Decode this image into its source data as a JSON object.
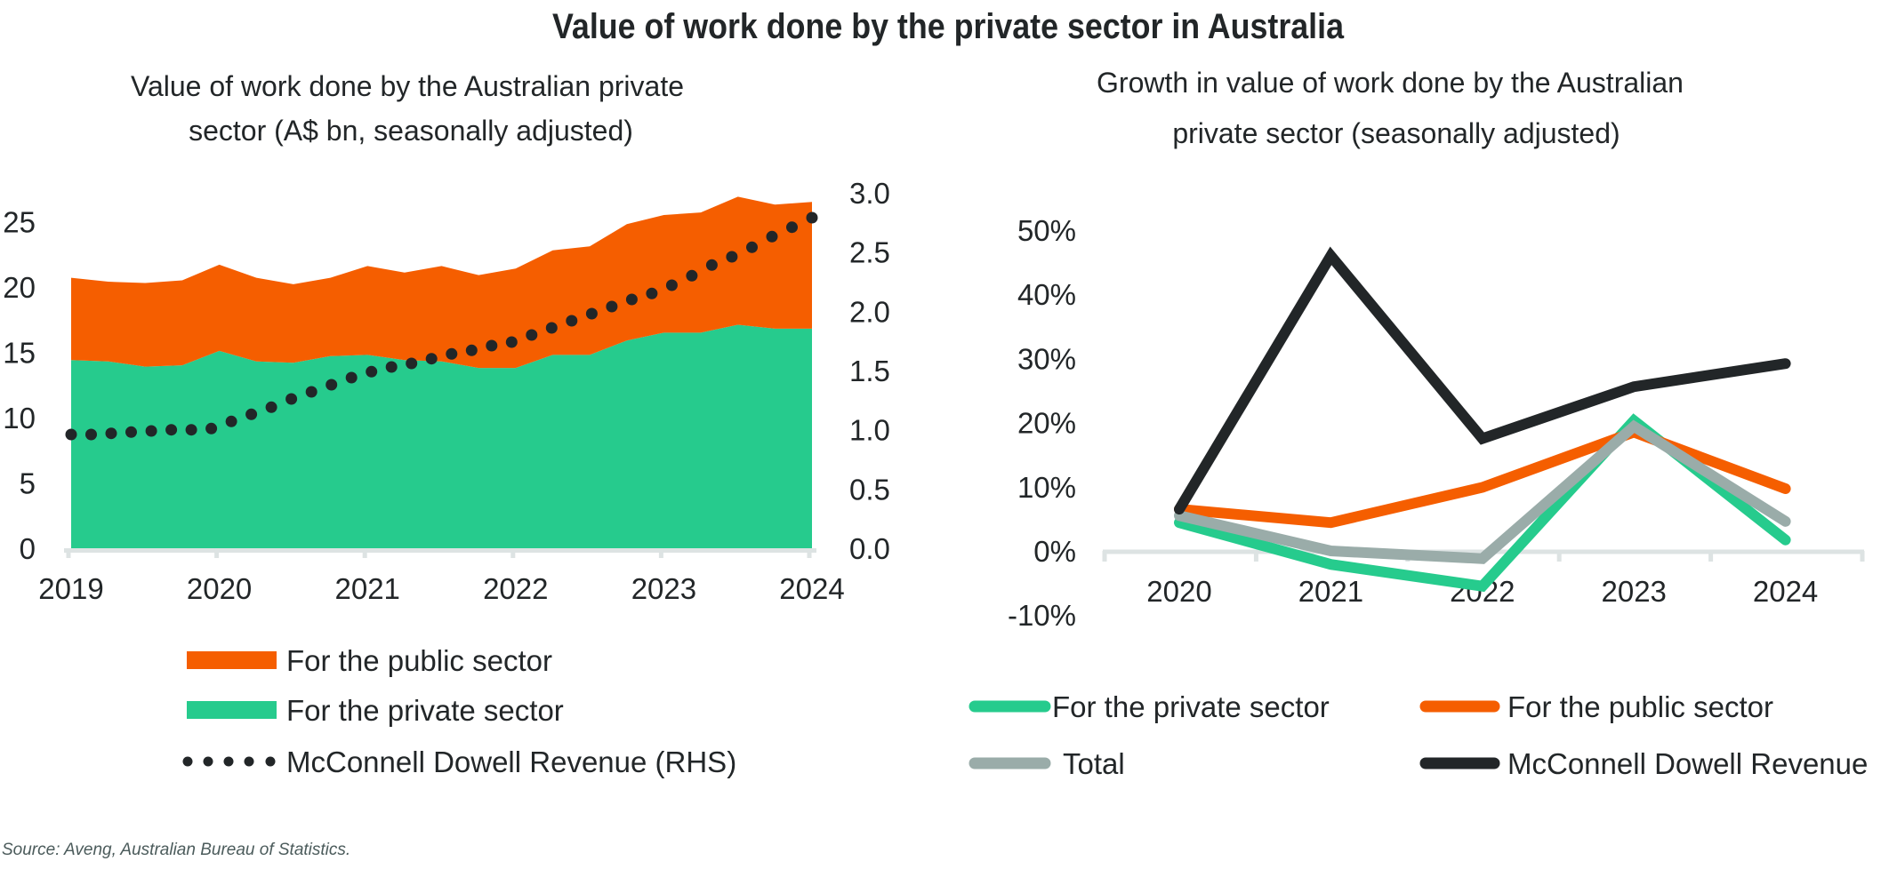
{
  "page_title": "Value of work done by the private sector in Australia",
  "source": "Source: Aveng, Australian Bureau of Statistics.",
  "colors": {
    "title": "#35de9c",
    "axis": "#dde3e3",
    "text": "#222628"
  },
  "chart_data": [
    {
      "type": "area",
      "stacked": true,
      "title_lines": [
        "Value of work done by the Australian private",
        "sector (A$ bn, seasonally adjusted)"
      ],
      "xlim": [
        2019,
        2024
      ],
      "ylim": [
        0,
        27.2
      ],
      "y2lim": [
        0,
        3.0
      ],
      "x_tick_values": [
        2019,
        2020,
        2021,
        2022,
        2023,
        2024
      ],
      "x_ticks": [
        "2019",
        "2020",
        "2021",
        "2022",
        "2023",
        "2024"
      ],
      "y_tick_values": [
        0,
        5,
        10,
        15,
        20,
        25
      ],
      "y_ticks": [
        "0",
        "5",
        "10",
        "15",
        "20",
        "25"
      ],
      "y2_tick_values": [
        0,
        0.5,
        1.0,
        1.5,
        2.0,
        2.5,
        3.0
      ],
      "y2_ticks": [
        "0.0",
        "0.5",
        "1.0",
        "1.5",
        "2.0",
        "2.5",
        "3.0"
      ],
      "grid": false,
      "legend_position": "bottom",
      "x": [
        2019,
        2019.25,
        2019.5,
        2019.75,
        2020,
        2020.25,
        2020.5,
        2020.75,
        2021,
        2021.25,
        2021.5,
        2021.75,
        2022,
        2022.25,
        2022.5,
        2022.75,
        2023,
        2023.25,
        2023.5,
        2023.75,
        2024
      ],
      "series": [
        {
          "name": "For the private sector",
          "color": "#26cb8d",
          "values": [
            14.4,
            14.3,
            13.9,
            14.0,
            15.1,
            14.3,
            14.2,
            14.7,
            14.8,
            14.4,
            14.3,
            13.8,
            13.8,
            14.8,
            14.8,
            15.9,
            16.5,
            16.5,
            17.1,
            16.8,
            16.8
          ]
        },
        {
          "name": "For the public sector",
          "color": "#f55e00",
          "values": [
            6.3,
            6.1,
            6.4,
            6.5,
            6.6,
            6.4,
            6.0,
            6.0,
            6.8,
            6.7,
            7.3,
            7.1,
            7.6,
            8.0,
            8.3,
            8.9,
            9.0,
            9.2,
            9.8,
            9.5,
            9.7
          ]
        }
      ],
      "revenue": {
        "name": "McConnell Dowell Revenue (RHS)",
        "axis": "right",
        "style": "dotted",
        "color": "#222628",
        "x_range": [
          2019,
          2024
        ],
        "values": [
          0.96,
          0.96,
          0.97,
          0.98,
          0.99,
          1.0,
          1.0,
          1.01,
          1.07,
          1.13,
          1.19,
          1.26,
          1.32,
          1.38,
          1.44,
          1.49,
          1.53,
          1.56,
          1.6,
          1.64,
          1.67,
          1.71,
          1.74,
          1.8,
          1.86,
          1.92,
          1.98,
          2.04,
          2.1,
          2.15,
          2.22,
          2.3,
          2.39,
          2.46,
          2.54,
          2.63,
          2.71,
          2.79
        ]
      }
    },
    {
      "type": "line",
      "title_lines": [
        "Growth in value of work done by the Australian",
        "private sector (seasonally adjusted)"
      ],
      "categories": [
        "2020",
        "2021",
        "2022",
        "2023",
        "2024"
      ],
      "ylim": [
        -10,
        50
      ],
      "y_tick_values": [
        -10,
        0,
        10,
        20,
        30,
        40,
        50
      ],
      "y_ticks": [
        "-10%",
        "0%",
        "10%",
        "20%",
        "30%",
        "40%",
        "50%"
      ],
      "ylabel_unit": "%",
      "grid": false,
      "legend_position": "bottom",
      "series": [
        {
          "name": "For the private sector",
          "color": "#26cb8d",
          "values": [
            4.4,
            -2.1,
            -5.5,
            20.3,
            1.7
          ]
        },
        {
          "name": "For the public sector",
          "color": "#f55e00",
          "values": [
            6.5,
            4.4,
            9.9,
            18.5,
            9.7
          ]
        },
        {
          "name": "Total",
          "color": "#9aaca9",
          "values": [
            5.5,
            0.0,
            -1.2,
            19.4,
            4.6
          ]
        },
        {
          "name": "McConnell Dowell Revenue",
          "color": "#222628",
          "values": [
            6.5,
            46.0,
            17.5,
            25.6,
            29.2
          ]
        }
      ]
    }
  ]
}
